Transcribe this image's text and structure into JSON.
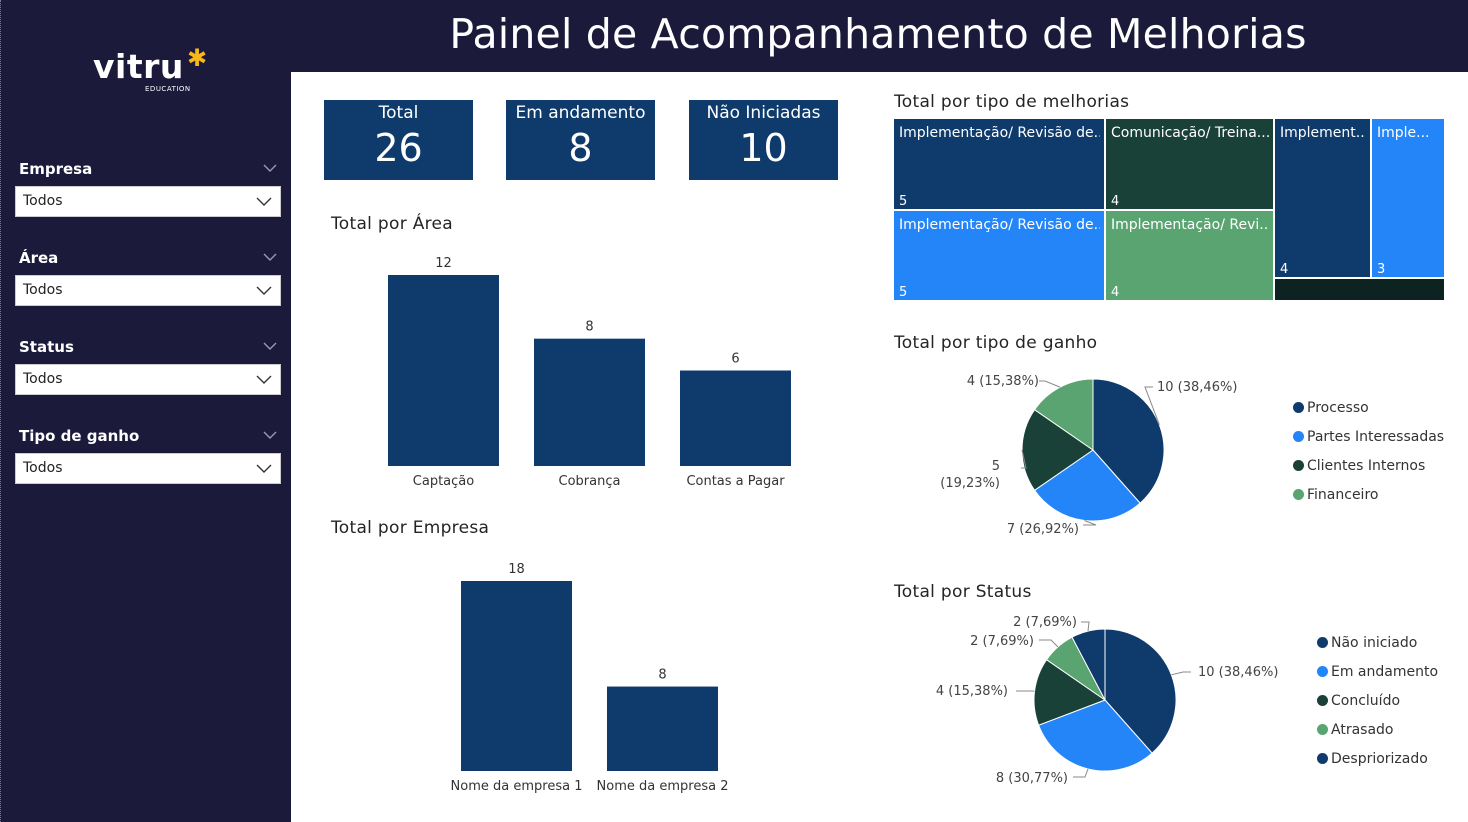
{
  "header": {
    "title": "Painel de Acompanhamento de Melhorias"
  },
  "logo": {
    "word": "vitru",
    "sub": "EDUCATION",
    "star": "✱"
  },
  "filters": [
    {
      "label": "Empresa",
      "value": "Todos"
    },
    {
      "label": "Área",
      "value": "Todos"
    },
    {
      "label": "Status",
      "value": "Todos"
    },
    {
      "label": "Tipo de ganho",
      "value": "Todos"
    }
  ],
  "kpis": [
    {
      "label": "Total",
      "value": "26"
    },
    {
      "label": "Em andamento",
      "value": "8"
    },
    {
      "label": "Não Iniciadas",
      "value": "10"
    }
  ],
  "colors": {
    "navy": "#0f3b6c",
    "blue": "#2385f8",
    "darkgreen": "#1a4137",
    "green": "#5aa471",
    "darkest": "#0c2321",
    "sidebar": "#1c1a3b"
  },
  "chart_data": [
    {
      "id": "area",
      "type": "bar",
      "title": "Total por Área",
      "categories": [
        "Captação",
        "Cobrança",
        "Contas a Pagar"
      ],
      "values": [
        12,
        8,
        6
      ],
      "ylim": [
        0,
        12
      ]
    },
    {
      "id": "empresa",
      "type": "bar",
      "title": "Total por Empresa",
      "categories": [
        "Nome da empresa 1",
        "Nome da empresa 2"
      ],
      "values": [
        18,
        8
      ],
      "ylim": [
        0,
        18
      ]
    },
    {
      "id": "tipo_melhorias",
      "type": "treemap",
      "title": "Total por tipo de melhorias",
      "items": [
        {
          "name": "Implementação/ Revisão de...",
          "value": 5,
          "color": "#0f3b6c"
        },
        {
          "name": "Comunicação/ Treina...",
          "value": 4,
          "color": "#1a4137"
        },
        {
          "name": "Implement...",
          "value": 4,
          "color": "#0f3b6c"
        },
        {
          "name": "Imple...",
          "value": 3,
          "color": "#2385f8"
        },
        {
          "name": "Implementação/ Revisão de...",
          "value": 5,
          "color": "#2385f8"
        },
        {
          "name": "Implementação/ Revi...",
          "value": 4,
          "color": "#5aa471"
        },
        {
          "name": "",
          "value": 1,
          "color": "#0c2321"
        }
      ]
    },
    {
      "id": "tipo_ganho",
      "type": "pie",
      "title": "Total por tipo de ganho",
      "slices": [
        {
          "name": "Processo",
          "value": 10,
          "label": "10 (38,46%)",
          "color": "#0f3b6c"
        },
        {
          "name": "Partes Interessadas",
          "value": 7,
          "label": "7 (26,92%)",
          "color": "#2385f8"
        },
        {
          "name": "Clientes Internos",
          "value": 5,
          "label_lines": [
            "5",
            "(19,23%)"
          ],
          "color": "#1a4137"
        },
        {
          "name": "Financeiro",
          "value": 4,
          "label": "4 (15,38%)",
          "color": "#5aa471"
        }
      ],
      "legend": "right"
    },
    {
      "id": "status",
      "type": "pie",
      "title": "Total por Status",
      "slices": [
        {
          "name": "Não iniciado",
          "value": 10,
          "label": "10 (38,46%)",
          "color": "#0f3b6c"
        },
        {
          "name": "Em andamento",
          "value": 8,
          "label": "8 (30,77%)",
          "color": "#2385f8"
        },
        {
          "name": "Concluído",
          "value": 4,
          "label": "4 (15,38%)",
          "color": "#1a4137"
        },
        {
          "name": "Atrasado",
          "value": 2,
          "label": "2 (7,69%)",
          "color": "#5aa471"
        },
        {
          "name": "Despriorizado",
          "value": 2,
          "label": "2 (7,69%)",
          "color": "#0f3b6c"
        }
      ],
      "legend": "right"
    }
  ]
}
